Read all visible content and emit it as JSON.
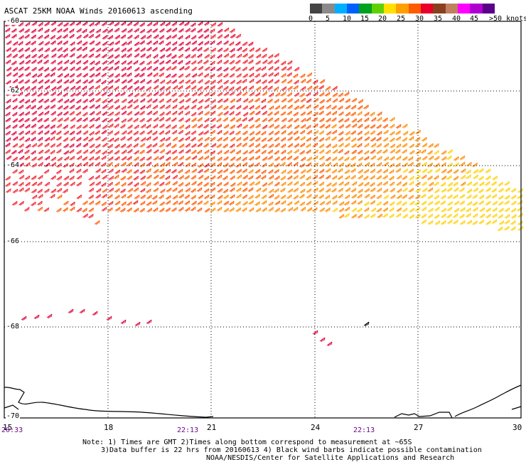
{
  "header": {
    "title": "ASCAT 25KM NOAA Winds 20160613 ascending"
  },
  "colorbar": {
    "colors": [
      "#444444",
      "#8a8a8a",
      "#00b0ff",
      "#0060ff",
      "#00a020",
      "#60d000",
      "#ffe000",
      "#ffa000",
      "#ff5a00",
      "#e8002a",
      "#8a4020",
      "#c08060",
      "#ff00ff",
      "#b000d0",
      "#5a008a"
    ],
    "labels": [
      "0",
      "5",
      "10",
      "15",
      "20",
      "25",
      "30",
      "35",
      "40",
      "45",
      ">50 knots"
    ]
  },
  "map": {
    "lat_labels": [
      "-60",
      "-62",
      "-64",
      "-66",
      "-68",
      "-70"
    ],
    "lon_labels": [
      "15",
      "18",
      "21",
      "24",
      "27",
      "30"
    ],
    "time_labels": [
      "20:33",
      "22:13",
      "22:13"
    ]
  },
  "footer": {
    "note_line1": "Note: 1) Times are GMT 2)Times along bottom correspond to measurement at ~65S",
    "note_line2": "3)Data buffer is 22 hrs from 20160613 4) Black wind barbs indicate possible contamination",
    "note_line3": "NOAA/NESDIS/Center for Satellite Applications and Research"
  }
}
